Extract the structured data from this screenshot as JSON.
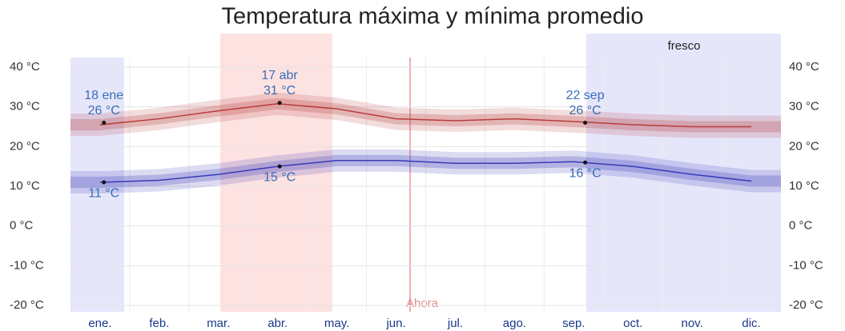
{
  "chart_data": {
    "type": "line",
    "title": "Temperatura máxima y mínima promedio",
    "categories": [
      "ene.",
      "feb.",
      "mar.",
      "abr.",
      "may.",
      "jun.",
      "jul.",
      "ago.",
      "sep.",
      "oct.",
      "nov.",
      "dic."
    ],
    "series": [
      {
        "color": "#b83c3c",
        "values": [
          25.5,
          27,
          29,
          30.8,
          29.5,
          27,
          26.5,
          27,
          26.3,
          25.5,
          25,
          25
        ]
      },
      {
        "color": "#3a3ab8",
        "values": [
          11,
          11.5,
          13,
          15,
          16.5,
          16.5,
          15.8,
          15.8,
          16.2,
          15,
          13,
          11.3
        ]
      }
    ],
    "ylim": [
      -20,
      40
    ],
    "yticks": [
      {
        "value": 40,
        "label": "40 °C"
      },
      {
        "value": 30,
        "label": "30 °C"
      },
      {
        "value": 20,
        "label": "20 °C"
      },
      {
        "value": 10,
        "label": "10 °C"
      },
      {
        "value": 0,
        "label": "0 °C"
      },
      {
        "value": -10,
        "label": "-10 °C"
      },
      {
        "value": -20,
        "label": "-20 °C"
      }
    ],
    "season_label": "fresco",
    "now_label": "Ahora",
    "annotations": [
      {
        "date": "18 ene",
        "high": {
          "value": 26,
          "label": "26 °C"
        },
        "low": {
          "value": 11,
          "label": "11 °C"
        }
      },
      {
        "date": "17 abr",
        "high": {
          "value": 31,
          "label": "31 °C"
        },
        "low": {
          "value": 15,
          "label": "15 °C"
        }
      },
      {
        "date": "22 sep",
        "high": {
          "value": 26,
          "label": "26 °C"
        },
        "low": {
          "value": 16,
          "label": "16 °C"
        }
      }
    ]
  }
}
